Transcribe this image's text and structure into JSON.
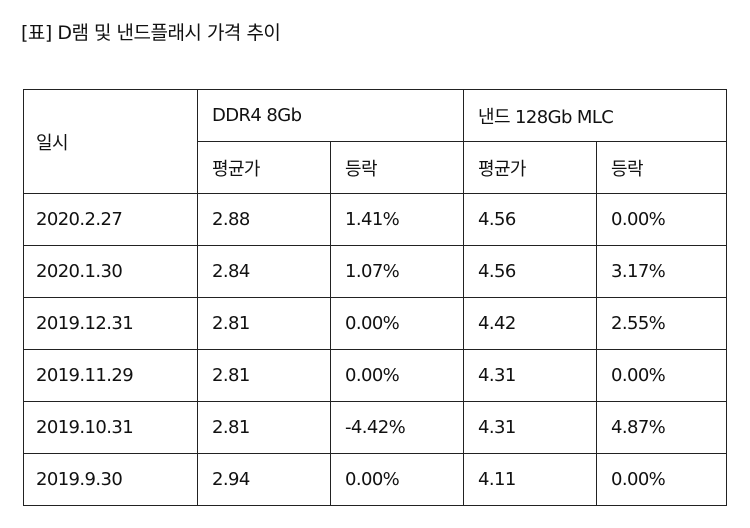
{
  "title": "[표] D램 및 낸드플래시 가격 추이",
  "table": {
    "date_header": "일시",
    "groups": [
      "DDR4 8Gb",
      "낸드 128Gb MLC"
    ],
    "subheaders": [
      "평균가",
      "등락",
      "평균가",
      "등락"
    ],
    "rows": [
      [
        "2020.2.27",
        "2.88",
        "1.41%",
        "4.56",
        "0.00%"
      ],
      [
        "2020.1.30",
        "2.84",
        "1.07%",
        "4.56",
        "3.17%"
      ],
      [
        "2019.12.31",
        "2.81",
        "0.00%",
        "4.42",
        "2.55%"
      ],
      [
        "2019.11.29",
        "2.81",
        "0.00%",
        "4.31",
        "0.00%"
      ],
      [
        "2019.10.31",
        "2.81",
        "-4.42%",
        "4.31",
        "4.87%"
      ],
      [
        "2019.9.30",
        "2.94",
        "0.00%",
        "4.11",
        "0.00%"
      ]
    ]
  }
}
